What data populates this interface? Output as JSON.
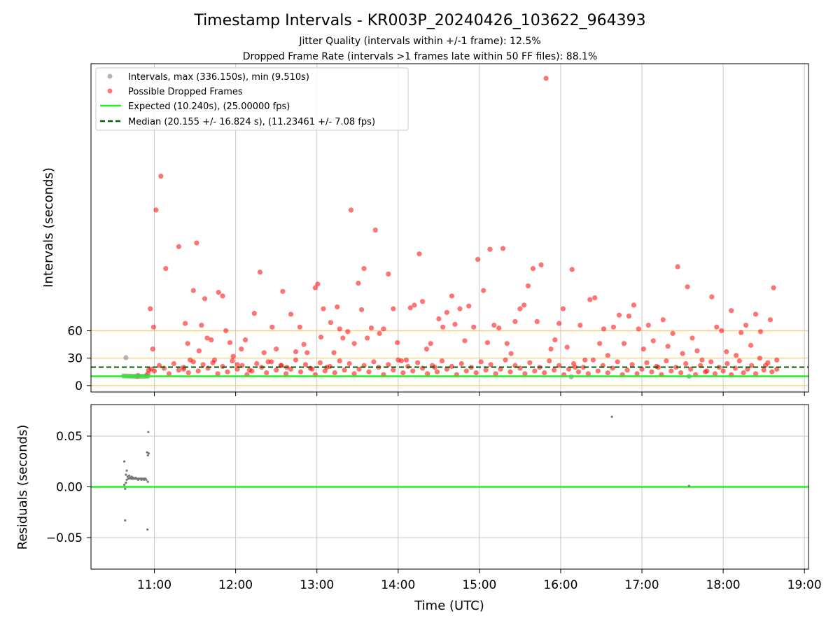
{
  "title": "Timestamp Intervals - KR003P_20240426_103622_964393",
  "subtitle_1": "Jitter Quality (intervals within +/-1 frame): 12.5%",
  "subtitle_2": "Dropped Frame Rate (intervals >1 frames late within 50 FF files): 88.1%",
  "colors": {
    "interval": "#999999",
    "dropped": "#ff0000",
    "expected": "#22ee22",
    "median": "#006400",
    "threshold": "#ffc04d",
    "grid": "#c8c8c8",
    "residual": "#777777"
  },
  "chart_data": [
    {
      "type": "scatter",
      "ylabel": "Intervals (seconds)",
      "xlim": [
        10.22,
        19.05
      ],
      "ylim": [
        -7,
        352
      ],
      "yticks": [
        "0",
        "30",
        "60"
      ],
      "ytick_values": [
        0,
        30,
        60
      ],
      "grid": "vertical at hourly ticks",
      "legend_placement": "upper-left",
      "legend": {
        "intervals": "Intervals, max (336.150s), min (9.510s)",
        "dropped": "Possible Dropped Frames",
        "expected": "Expected (10.240s), (25.00000 fps)",
        "median": "Median (20.155 +/- 16.824 s), (11.23461 +/- 7.08 fps)"
      },
      "expected_interval": 10.24,
      "median_interval": 20.155,
      "threshold_lines": [
        0,
        30,
        60
      ],
      "interval_points": [
        [
          10.65,
          30.5
        ],
        [
          10.62,
          10.5
        ],
        [
          10.65,
          10.5
        ],
        [
          10.68,
          10.3
        ],
        [
          10.71,
          10.4
        ],
        [
          10.74,
          10.2
        ],
        [
          10.77,
          10.3
        ],
        [
          10.8,
          10.3
        ],
        [
          10.83,
          10.2
        ],
        [
          10.86,
          10.3
        ],
        [
          10.89,
          10.2
        ],
        [
          10.92,
          10.3
        ],
        [
          16.13,
          9.6
        ],
        [
          17.58,
          10.2
        ]
      ],
      "dropped_points": [
        [
          10.79,
          10
        ],
        [
          10.8,
          11
        ],
        [
          10.9,
          11
        ],
        [
          10.92,
          13
        ],
        [
          10.93,
          17
        ],
        [
          10.95,
          84
        ],
        [
          10.98,
          40
        ],
        [
          10.99,
          64
        ],
        [
          11.02,
          192
        ],
        [
          11.08,
          229
        ],
        [
          11.14,
          128
        ],
        [
          11.3,
          152
        ],
        [
          11.52,
          156
        ],
        [
          11.36,
          18
        ],
        [
          11.38,
          68
        ],
        [
          11.41,
          46
        ],
        [
          11.44,
          28
        ],
        [
          11.48,
          104
        ],
        [
          11.55,
          38
        ],
        [
          11.58,
          66
        ],
        [
          11.62,
          95
        ],
        [
          11.65,
          52
        ],
        [
          11.7,
          50
        ],
        [
          11.74,
          28
        ],
        [
          11.79,
          102
        ],
        [
          11.84,
          98
        ],
        [
          11.88,
          60
        ],
        [
          11.93,
          47
        ],
        [
          11.97,
          32
        ],
        [
          12.02,
          23
        ],
        [
          12.07,
          40
        ],
        [
          12.12,
          50
        ],
        [
          12.17,
          17
        ],
        [
          12.23,
          79
        ],
        [
          12.3,
          124
        ],
        [
          12.35,
          36
        ],
        [
          12.4,
          26
        ],
        [
          12.45,
          64
        ],
        [
          12.5,
          40
        ],
        [
          12.56,
          22
        ],
        [
          12.58,
          103
        ],
        [
          12.63,
          20
        ],
        [
          12.68,
          78
        ],
        [
          12.74,
          37
        ],
        [
          12.79,
          64
        ],
        [
          12.84,
          45
        ],
        [
          12.88,
          36
        ],
        [
          12.94,
          18
        ],
        [
          12.98,
          107
        ],
        [
          13.01,
          111
        ],
        [
          13.05,
          53
        ],
        [
          13.08,
          84
        ],
        [
          13.12,
          20
        ],
        [
          13.17,
          69
        ],
        [
          13.21,
          36
        ],
        [
          13.25,
          86
        ],
        [
          13.28,
          62
        ],
        [
          13.32,
          52
        ],
        [
          13.38,
          59
        ],
        [
          13.42,
          192
        ],
        [
          13.46,
          46
        ],
        [
          13.51,
          112
        ],
        [
          13.55,
          83
        ],
        [
          13.58,
          128
        ],
        [
          13.62,
          52
        ],
        [
          13.67,
          63
        ],
        [
          13.72,
          170
        ],
        [
          13.77,
          57
        ],
        [
          13.82,
          62
        ],
        [
          13.88,
          122
        ],
        [
          13.94,
          84
        ],
        [
          13.99,
          47
        ],
        [
          14.04,
          27
        ],
        [
          14.1,
          28
        ],
        [
          14.15,
          85
        ],
        [
          14.2,
          88
        ],
        [
          14.26,
          144
        ],
        [
          14.3,
          92
        ],
        [
          14.35,
          40
        ],
        [
          14.4,
          46
        ],
        [
          14.45,
          20
        ],
        [
          14.5,
          73
        ],
        [
          14.55,
          64
        ],
        [
          14.6,
          80
        ],
        [
          14.66,
          98
        ],
        [
          14.7,
          67
        ],
        [
          14.76,
          84
        ],
        [
          14.82,
          49
        ],
        [
          14.87,
          87
        ],
        [
          14.93,
          64
        ],
        [
          14.98,
          138
        ],
        [
          15.05,
          104
        ],
        [
          15.1,
          47
        ],
        [
          15.13,
          149
        ],
        [
          15.18,
          66
        ],
        [
          15.24,
          63
        ],
        [
          15.29,
          150
        ],
        [
          15.34,
          46
        ],
        [
          15.39,
          35
        ],
        [
          15.44,
          70
        ],
        [
          15.5,
          84
        ],
        [
          15.55,
          88
        ],
        [
          15.6,
          109
        ],
        [
          15.66,
          128
        ],
        [
          15.71,
          70
        ],
        [
          15.76,
          132
        ],
        [
          15.82,
          336
        ],
        [
          15.88,
          40
        ],
        [
          15.93,
          50
        ],
        [
          15.98,
          68
        ],
        [
          16.03,
          84
        ],
        [
          16.08,
          42
        ],
        [
          16.14,
          127
        ],
        [
          16.18,
          20
        ],
        [
          16.24,
          66
        ],
        [
          16.3,
          28
        ],
        [
          16.36,
          94
        ],
        [
          16.42,
          96
        ],
        [
          16.48,
          46
        ],
        [
          16.53,
          62
        ],
        [
          16.58,
          33
        ],
        [
          16.65,
          64
        ],
        [
          16.72,
          77
        ],
        [
          16.78,
          46
        ],
        [
          16.84,
          76
        ],
        [
          16.9,
          88
        ],
        [
          16.96,
          62
        ],
        [
          17.02,
          40
        ],
        [
          17.08,
          66
        ],
        [
          17.14,
          49
        ],
        [
          17.2,
          20
        ],
        [
          17.26,
          72
        ],
        [
          17.32,
          43
        ],
        [
          17.38,
          57
        ],
        [
          17.44,
          130
        ],
        [
          17.5,
          35
        ],
        [
          17.56,
          108
        ],
        [
          17.62,
          52
        ],
        [
          17.68,
          38
        ],
        [
          17.74,
          28
        ],
        [
          17.8,
          16
        ],
        [
          17.86,
          97
        ],
        [
          17.92,
          64
        ],
        [
          17.98,
          60
        ],
        [
          18.04,
          37
        ],
        [
          18.1,
          82
        ],
        [
          18.16,
          33
        ],
        [
          18.22,
          58
        ],
        [
          18.28,
          66
        ],
        [
          18.34,
          44
        ],
        [
          18.4,
          78
        ],
        [
          18.46,
          59
        ],
        [
          18.52,
          22
        ],
        [
          18.58,
          72
        ],
        [
          18.62,
          107
        ],
        [
          18.66,
          28
        ],
        [
          18.66,
          18
        ],
        [
          18.6,
          15
        ],
        [
          18.55,
          25
        ],
        [
          18.5,
          17
        ],
        [
          18.45,
          30
        ],
        [
          18.4,
          13
        ],
        [
          18.35,
          22
        ],
        [
          18.3,
          18
        ],
        [
          18.25,
          14
        ],
        [
          18.2,
          27
        ],
        [
          18.15,
          19
        ],
        [
          18.1,
          12
        ],
        [
          18.05,
          24
        ],
        [
          18.0,
          16
        ],
        [
          17.95,
          20
        ],
        [
          17.9,
          13
        ],
        [
          17.85,
          26
        ],
        [
          17.78,
          15
        ],
        [
          17.72,
          22
        ],
        [
          17.66,
          12
        ],
        [
          17.6,
          18
        ],
        [
          17.54,
          24
        ],
        [
          17.48,
          14
        ],
        [
          17.42,
          20
        ],
        [
          17.36,
          16
        ],
        [
          17.3,
          27
        ],
        [
          17.24,
          12
        ],
        [
          17.18,
          21
        ],
        [
          17.12,
          15
        ],
        [
          17.06,
          25
        ],
        [
          17.0,
          18
        ],
        [
          16.94,
          13
        ],
        [
          16.88,
          23
        ],
        [
          16.82,
          17
        ],
        [
          16.76,
          12
        ],
        [
          16.7,
          26
        ],
        [
          16.64,
          19
        ],
        [
          16.58,
          14
        ],
        [
          16.52,
          22
        ],
        [
          16.46,
          16
        ],
        [
          16.4,
          28
        ],
        [
          16.34,
          13
        ],
        [
          16.28,
          20
        ],
        [
          16.22,
          15
        ],
        [
          16.16,
          24
        ],
        [
          16.1,
          18
        ],
        [
          16.04,
          12
        ],
        [
          15.98,
          22
        ],
        [
          15.92,
          17
        ],
        [
          15.86,
          27
        ],
        [
          15.8,
          14
        ],
        [
          15.74,
          20
        ],
        [
          15.68,
          16
        ],
        [
          15.62,
          25
        ],
        [
          15.56,
          13
        ],
        [
          15.5,
          19
        ],
        [
          15.44,
          22
        ],
        [
          15.38,
          15
        ],
        [
          15.32,
          28
        ],
        [
          15.26,
          18
        ],
        [
          15.2,
          13
        ],
        [
          15.14,
          23
        ],
        [
          15.08,
          17
        ],
        [
          15.02,
          26
        ],
        [
          14.96,
          14
        ],
        [
          14.9,
          20
        ],
        [
          14.84,
          16
        ],
        [
          14.78,
          24
        ],
        [
          14.72,
          12
        ],
        [
          14.66,
          21
        ],
        [
          14.6,
          18
        ],
        [
          14.54,
          27
        ],
        [
          14.48,
          15
        ],
        [
          14.42,
          22
        ],
        [
          14.36,
          13
        ],
        [
          14.3,
          19
        ],
        [
          14.24,
          25
        ],
        [
          14.18,
          16
        ],
        [
          14.12,
          21
        ],
        [
          14.06,
          14
        ],
        [
          14.0,
          28
        ],
        [
          13.94,
          17
        ],
        [
          13.88,
          23
        ],
        [
          13.82,
          12
        ],
        [
          13.76,
          20
        ],
        [
          13.7,
          26
        ],
        [
          13.64,
          15
        ],
        [
          13.58,
          22
        ],
        [
          13.52,
          18
        ],
        [
          13.46,
          13
        ],
        [
          13.4,
          24
        ],
        [
          13.34,
          17
        ],
        [
          13.28,
          27
        ],
        [
          13.22,
          14
        ],
        [
          13.16,
          21
        ],
        [
          13.1,
          16
        ],
        [
          13.04,
          25
        ],
        [
          12.98,
          12
        ],
        [
          12.92,
          19
        ],
        [
          12.86,
          23
        ],
        [
          12.8,
          15
        ],
        [
          12.74,
          28
        ],
        [
          12.68,
          18
        ],
        [
          12.62,
          13
        ],
        [
          12.56,
          22
        ],
        [
          12.5,
          17
        ],
        [
          12.44,
          26
        ],
        [
          12.38,
          14
        ],
        [
          12.32,
          20
        ],
        [
          12.26,
          24
        ],
        [
          12.2,
          16
        ],
        [
          12.14,
          12
        ],
        [
          12.08,
          22
        ],
        [
          12.02,
          18
        ],
        [
          11.96,
          27
        ],
        [
          11.9,
          15
        ],
        [
          11.84,
          21
        ],
        [
          11.78,
          13
        ],
        [
          11.72,
          25
        ],
        [
          11.66,
          19
        ],
        [
          11.6,
          23
        ],
        [
          11.54,
          16
        ],
        [
          11.48,
          26
        ],
        [
          11.42,
          14
        ],
        [
          11.36,
          20
        ],
        [
          11.3,
          17
        ],
        [
          11.24,
          24
        ],
        [
          11.18,
          13
        ],
        [
          11.12,
          19
        ],
        [
          11.06,
          22
        ],
        [
          11.0,
          16
        ],
        [
          10.96,
          18
        ]
      ]
    },
    {
      "type": "scatter",
      "xlabel": "Time (UTC)",
      "ylabel": "Residuals (seconds)",
      "xlim": [
        10.22,
        19.05
      ],
      "ylim": [
        -0.081,
        0.081
      ],
      "xticks": [
        "11:00",
        "12:00",
        "13:00",
        "14:00",
        "15:00",
        "16:00",
        "17:00",
        "18:00",
        "19:00"
      ],
      "xtick_values": [
        11,
        12,
        13,
        14,
        15,
        16,
        17,
        18,
        19
      ],
      "yticks": [
        "0.05",
        "0.00",
        "−0.05"
      ],
      "ytick_values": [
        0.05,
        0.0,
        -0.05
      ],
      "grid": "both",
      "zero_line": 0.0,
      "residual_points": [
        [
          10.63,
          0.025
        ],
        [
          10.64,
          -0.033
        ],
        [
          10.65,
          0.012
        ],
        [
          10.66,
          0.016
        ],
        [
          10.67,
          0.01
        ],
        [
          10.68,
          0.008
        ],
        [
          10.69,
          0.011
        ],
        [
          10.7,
          0.009
        ],
        [
          10.71,
          0.008
        ],
        [
          10.72,
          0.01
        ],
        [
          10.73,
          0.008
        ],
        [
          10.74,
          0.009
        ],
        [
          10.75,
          0.008
        ],
        [
          10.76,
          0.008
        ],
        [
          10.77,
          0.009
        ],
        [
          10.78,
          0.008
        ],
        [
          10.79,
          0.008
        ],
        [
          10.8,
          0.007
        ],
        [
          10.81,
          0.008
        ],
        [
          10.82,
          0.008
        ],
        [
          10.83,
          0.008
        ],
        [
          10.84,
          0.007
        ],
        [
          10.85,
          0.008
        ],
        [
          10.86,
          0.008
        ],
        [
          10.87,
          0.007
        ],
        [
          10.88,
          0.008
        ],
        [
          10.89,
          0.008
        ],
        [
          10.9,
          0.007
        ],
        [
          10.63,
          0.002
        ],
        [
          10.64,
          -0.002
        ],
        [
          10.65,
          0.004
        ],
        [
          10.66,
          0.007
        ],
        [
          10.91,
          0.034
        ],
        [
          10.92,
          0.031
        ],
        [
          10.925,
          0.054
        ],
        [
          10.915,
          -0.042
        ],
        [
          10.93,
          0.033
        ],
        [
          10.92,
          0.005
        ],
        [
          16.63,
          0.069
        ],
        [
          17.58,
          0.001
        ]
      ]
    }
  ]
}
